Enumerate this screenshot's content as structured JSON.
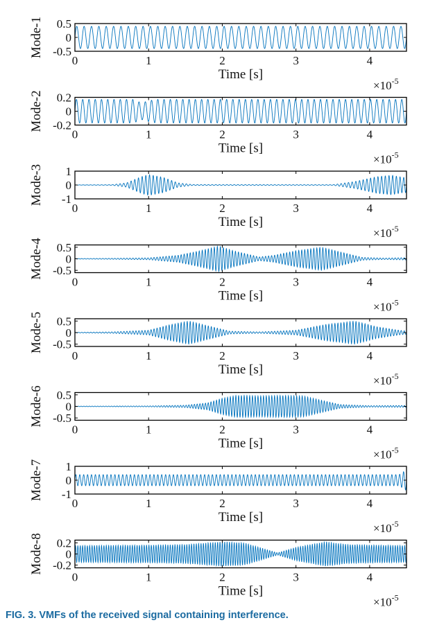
{
  "caption": {
    "label": "FIG. 3.",
    "text": "VMFs of the received signal containing interference."
  },
  "colors": {
    "signal": "#0072BD",
    "axis": "#000000"
  },
  "chart_data": [
    {
      "type": "line",
      "ylabel": "Mode-1",
      "xlabel": "Time [s]",
      "xlim": [
        0,
        4.5
      ],
      "x_exponent": "×10",
      "x_exponent_power": "-5",
      "xticks": [
        "0",
        "1",
        "2",
        "3",
        "4"
      ],
      "ylim": [
        -0.5,
        0.5
      ],
      "yticks": [
        "0.5",
        "0",
        "-0.5"
      ],
      "ytick_values": [
        0.5,
        0,
        -0.5
      ],
      "oscillation_cycles": 45,
      "envelope": [
        [
          0,
          0.4
        ],
        [
          4.5,
          0.4
        ]
      ]
    },
    {
      "type": "line",
      "ylabel": "Mode-2",
      "xlabel": "Time [s]",
      "xlim": [
        0,
        4.5
      ],
      "x_exponent": "×10",
      "x_exponent_power": "-5",
      "xticks": [
        "0",
        "1",
        "2",
        "3",
        "4"
      ],
      "ylim": [
        -0.2,
        0.2
      ],
      "yticks": [
        "0.2",
        "0",
        "-0.2"
      ],
      "ytick_values": [
        0.2,
        0,
        -0.2
      ],
      "oscillation_cycles": 53,
      "envelope": [
        [
          0,
          0.17
        ],
        [
          0.8,
          0.17
        ],
        [
          0.9,
          0.12
        ],
        [
          1.0,
          0.15
        ],
        [
          1.1,
          0.17
        ],
        [
          4.5,
          0.17
        ]
      ]
    },
    {
      "type": "line",
      "ylabel": "Mode-3",
      "xlabel": "Time [s]",
      "xlim": [
        0,
        4.5
      ],
      "x_exponent": "×10",
      "x_exponent_power": "-5",
      "xticks": [
        "0",
        "1",
        "2",
        "3",
        "4"
      ],
      "ylim": [
        -1,
        1
      ],
      "yticks": [
        "1",
        "0",
        "-1"
      ],
      "ytick_values": [
        1,
        0,
        -1
      ],
      "oscillation_cycles": 90,
      "envelope": [
        [
          0,
          0.01
        ],
        [
          0.5,
          0.02
        ],
        [
          0.7,
          0.15
        ],
        [
          0.9,
          0.6
        ],
        [
          1.0,
          0.75
        ],
        [
          1.2,
          0.55
        ],
        [
          1.4,
          0.15
        ],
        [
          1.6,
          0.03
        ],
        [
          3.5,
          0.02
        ],
        [
          3.8,
          0.25
        ],
        [
          4.1,
          0.6
        ],
        [
          4.3,
          0.7
        ],
        [
          4.45,
          0.55
        ],
        [
          4.5,
          0.55
        ]
      ]
    },
    {
      "type": "line",
      "ylabel": "Mode-4",
      "xlabel": "Time [s]",
      "xlim": [
        0,
        4.5
      ],
      "x_exponent": "×10",
      "x_exponent_power": "-5",
      "xticks": [
        "0",
        "1",
        "2",
        "3",
        "4"
      ],
      "ylim": [
        -0.6,
        0.6
      ],
      "yticks": [
        "0.5",
        "0",
        "-0.5"
      ],
      "ytick_values": [
        0.5,
        0,
        -0.5
      ],
      "oscillation_cycles": 110,
      "envelope": [
        [
          0,
          0.01
        ],
        [
          0.5,
          0.02
        ],
        [
          1.0,
          0.04
        ],
        [
          1.4,
          0.15
        ],
        [
          1.7,
          0.35
        ],
        [
          1.95,
          0.55
        ],
        [
          2.15,
          0.35
        ],
        [
          2.5,
          0.08
        ],
        [
          2.7,
          0.15
        ],
        [
          3.0,
          0.35
        ],
        [
          3.35,
          0.5
        ],
        [
          3.6,
          0.3
        ],
        [
          3.9,
          0.06
        ],
        [
          4.2,
          0.03
        ],
        [
          4.5,
          0.05
        ]
      ]
    },
    {
      "type": "line",
      "ylabel": "Mode-5",
      "xlabel": "Time [s]",
      "xlim": [
        0,
        4.5
      ],
      "x_exponent": "×10",
      "x_exponent_power": "-5",
      "xticks": [
        "0",
        "1",
        "2",
        "3",
        "4"
      ],
      "ylim": [
        -0.6,
        0.6
      ],
      "yticks": [
        "0.5",
        "0",
        "-0.5"
      ],
      "ytick_values": [
        0.5,
        0,
        -0.5
      ],
      "oscillation_cycles": 110,
      "envelope": [
        [
          0,
          0.01
        ],
        [
          0.5,
          0.03
        ],
        [
          1.0,
          0.1
        ],
        [
          1.3,
          0.35
        ],
        [
          1.55,
          0.5
        ],
        [
          1.8,
          0.3
        ],
        [
          2.1,
          0.06
        ],
        [
          2.5,
          0.03
        ],
        [
          3.0,
          0.1
        ],
        [
          3.4,
          0.35
        ],
        [
          3.8,
          0.5
        ],
        [
          4.1,
          0.25
        ],
        [
          4.4,
          0.1
        ],
        [
          4.5,
          0.07
        ]
      ]
    },
    {
      "type": "line",
      "ylabel": "Mode-6",
      "xlabel": "Time [s]",
      "xlim": [
        0,
        4.5
      ],
      "x_exponent": "×10",
      "x_exponent_power": "-5",
      "xticks": [
        "0",
        "1",
        "2",
        "3",
        "4"
      ],
      "ylim": [
        -0.6,
        0.6
      ],
      "yticks": [
        "0.5",
        "0",
        "-0.5"
      ],
      "ytick_values": [
        0.5,
        0,
        -0.5
      ],
      "oscillation_cycles": 120,
      "envelope": [
        [
          0,
          0.01
        ],
        [
          1.0,
          0.02
        ],
        [
          1.5,
          0.05
        ],
        [
          1.8,
          0.15
        ],
        [
          2.0,
          0.35
        ],
        [
          2.2,
          0.48
        ],
        [
          2.5,
          0.45
        ],
        [
          2.8,
          0.47
        ],
        [
          3.1,
          0.45
        ],
        [
          3.3,
          0.3
        ],
        [
          3.6,
          0.08
        ],
        [
          4.0,
          0.03
        ],
        [
          4.5,
          0.04
        ]
      ]
    },
    {
      "type": "line",
      "ylabel": "Mode-7",
      "xlabel": "Time [s]",
      "xlim": [
        0,
        4.5
      ],
      "x_exponent": "×10",
      "x_exponent_power": "-5",
      "xticks": [
        "0",
        "1",
        "2",
        "3",
        "4"
      ],
      "ylim": [
        -1,
        1
      ],
      "yticks": [
        "1",
        "0",
        "-1"
      ],
      "ytick_values": [
        1,
        0,
        -1
      ],
      "oscillation_cycles": 85,
      "envelope": [
        [
          0,
          0.4
        ],
        [
          4.4,
          0.4
        ],
        [
          4.5,
          0.75
        ]
      ]
    },
    {
      "type": "line",
      "ylabel": "Mode-8",
      "xlabel": "Time [s]",
      "xlim": [
        0,
        4.5
      ],
      "x_exponent": "×10",
      "x_exponent_power": "-5",
      "xticks": [
        "0",
        "1",
        "2",
        "3",
        "4"
      ],
      "ylim": [
        -0.25,
        0.25
      ],
      "yticks": [
        "0.2",
        "0",
        "-0.2"
      ],
      "ytick_values": [
        0.2,
        0,
        -0.2
      ],
      "oscillation_cycles": 140,
      "envelope": [
        [
          0,
          0.15
        ],
        [
          1.0,
          0.16
        ],
        [
          1.5,
          0.17
        ],
        [
          2.0,
          0.22
        ],
        [
          2.3,
          0.2
        ],
        [
          2.55,
          0.1
        ],
        [
          2.75,
          0.02
        ],
        [
          3.0,
          0.12
        ],
        [
          3.4,
          0.22
        ],
        [
          3.7,
          0.17
        ],
        [
          4.5,
          0.15
        ]
      ]
    }
  ]
}
